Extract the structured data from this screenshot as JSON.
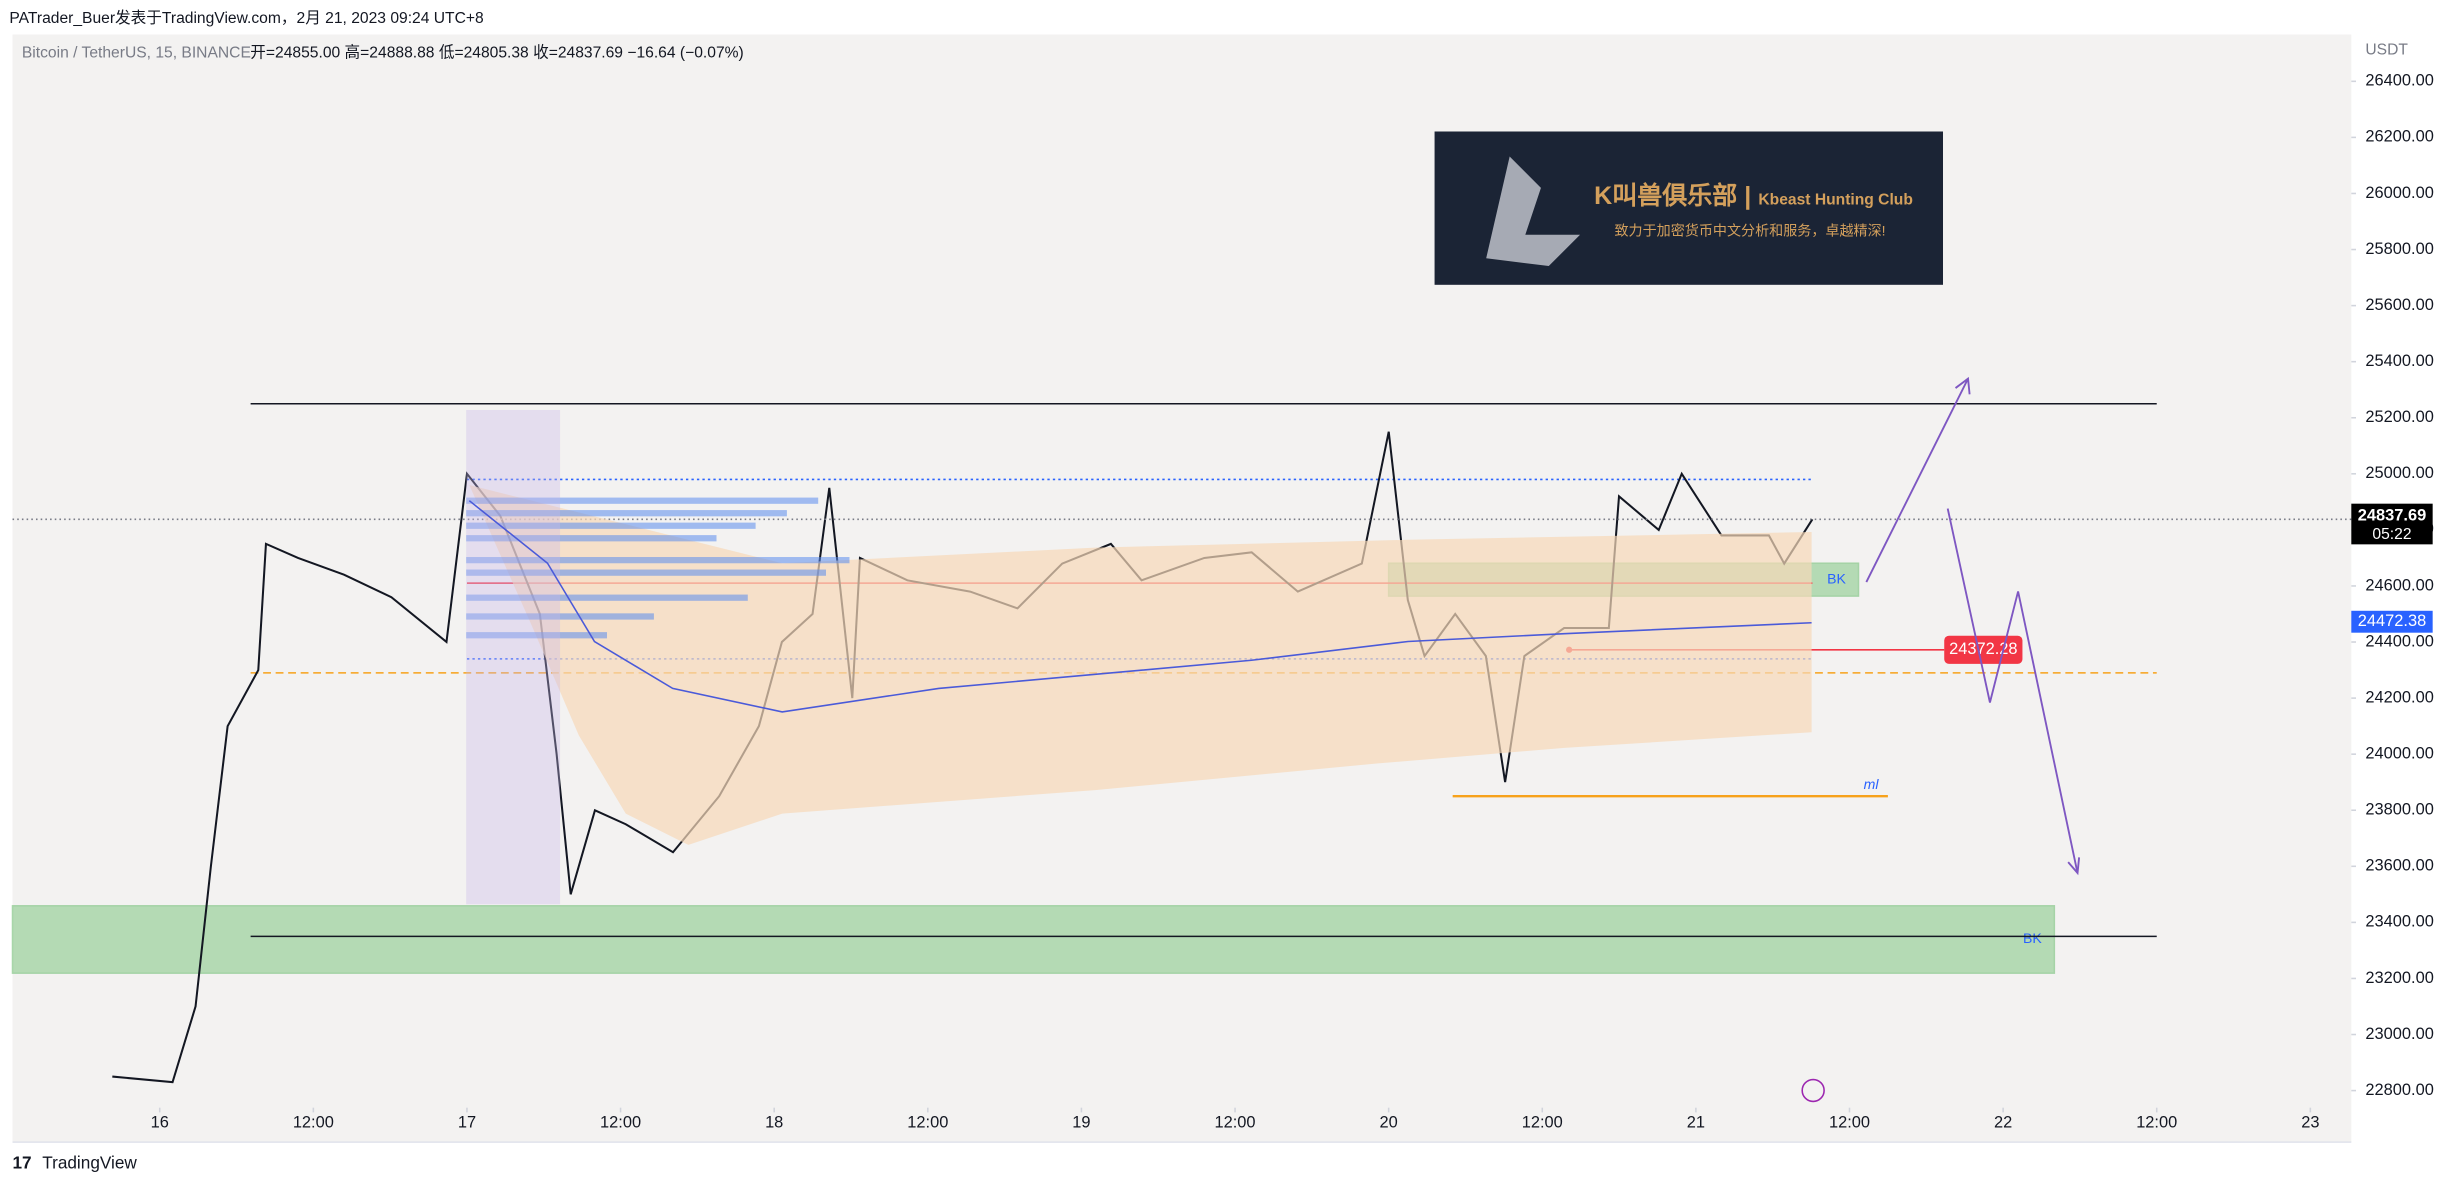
{
  "header": {
    "publisher": "PATrader_Buer发表于TradingView.com，2月 21, 2023 09:24 UTC+8"
  },
  "footer": {
    "brand": "TradingView"
  },
  "chart_data": {
    "type": "line",
    "title": "Bitcoin / TetherUS, 15, BINANCE",
    "legend_text": "开=24855.00  高=24888.88  低=24805.38  收=24837.69  −16.64 (−0.07%)",
    "y_unit": "USDT",
    "color": "#131722",
    "x": [
      -3.7,
      1,
      2.8,
      4,
      5.3,
      7.7,
      8.3,
      10.8,
      14.4,
      18.1,
      22.4,
      24,
      26.6,
      29.7,
      31,
      32.1,
      34,
      36.4,
      40.1,
      43.7,
      46.8,
      48.6,
      51,
      52.3,
      54.1,
      54.7,
      58.4,
      63.3,
      67,
      70.5,
      74.3,
      76.7,
      81.6,
      85.3,
      88.9,
      93.9,
      96,
      97.5,
      98.8,
      101.2,
      103.6,
      105.1,
      106.6,
      109.7,
      113.2,
      114,
      117.1,
      118.9,
      122,
      125.7,
      126.9,
      129.1
    ],
    "values": [
      22850,
      22830,
      23100,
      23600,
      24100,
      24300,
      24750,
      24700,
      24640,
      24560,
      24400,
      25000,
      24850,
      24500,
      24000,
      23500,
      23800,
      23750,
      23650,
      23850,
      24100,
      24400,
      24500,
      24950,
      24200,
      24700,
      24620,
      24580,
      24520,
      24680,
      24750,
      24620,
      24700,
      24720,
      24580,
      24680,
      25150,
      24550,
      24350,
      24500,
      24350,
      23900,
      24350,
      24450,
      24450,
      24920,
      24800,
      25000,
      24780,
      24780,
      24680,
      24837.69
    ],
    "xlim": [
      -11.5,
      171.2
    ],
    "ylim": [
      22739,
      26567
    ],
    "xticks": [
      {
        "value": 0,
        "label": "16"
      },
      {
        "value": 12,
        "label": "12:00"
      },
      {
        "value": 24,
        "label": "17"
      },
      {
        "value": 36,
        "label": "12:00"
      },
      {
        "value": 48,
        "label": "18"
      },
      {
        "value": 60,
        "label": "12:00"
      },
      {
        "value": 72,
        "label": "19"
      },
      {
        "value": 84,
        "label": "12:00"
      },
      {
        "value": 96,
        "label": "20"
      },
      {
        "value": 108,
        "label": "12:00"
      },
      {
        "value": 120,
        "label": "21"
      },
      {
        "value": 132,
        "label": "12:00"
      },
      {
        "value": 144,
        "label": "22"
      },
      {
        "value": 156,
        "label": "12:00"
      },
      {
        "value": 168,
        "label": "23"
      }
    ],
    "yticks": [
      {
        "value": 22800,
        "label": "22800.00"
      },
      {
        "value": 23000,
        "label": "23000.00"
      },
      {
        "value": 23200,
        "label": "23200.00"
      },
      {
        "value": 23400,
        "label": "23400.00"
      },
      {
        "value": 23600,
        "label": "23600.00"
      },
      {
        "value": 23800,
        "label": "23800.00"
      },
      {
        "value": 24000,
        "label": "24000.00"
      },
      {
        "value": 24200,
        "label": "24200.00"
      },
      {
        "value": 24400,
        "label": "24400.00"
      },
      {
        "value": 24600,
        "label": "24600.00"
      },
      {
        "value": 24800,
        "label": "24800.00"
      },
      {
        "value": 25000,
        "label": "25000.00"
      },
      {
        "value": 25200,
        "label": "25200.00"
      },
      {
        "value": 25400,
        "label": "25400.00"
      },
      {
        "value": 25600,
        "label": "25600.00"
      },
      {
        "value": 25800,
        "label": "25800.00"
      },
      {
        "value": 26000,
        "label": "26000.00"
      },
      {
        "value": 26200,
        "label": "26200.00"
      },
      {
        "value": 26400,
        "label": "26400.00"
      }
    ],
    "last_price": {
      "value": 24837.69,
      "label": "24837.69",
      "countdown": "05:22"
    },
    "price_markers": [
      {
        "value": 24472.38,
        "label": "24472.38",
        "color": "#2962ff"
      }
    ],
    "alert": {
      "value": 24372.28,
      "label": "24372.28",
      "color": "#f23645",
      "x": [
        110.1,
        139.4
      ]
    },
    "levels": [
      {
        "value": 25250,
        "x": [
          7.1,
          156
        ],
        "color": "#131722",
        "style": "solid"
      },
      {
        "value": 23350,
        "x": [
          7.1,
          156
        ],
        "color": "#131722",
        "style": "solid"
      },
      {
        "value": 24980,
        "x": [
          24,
          129.1
        ],
        "color": "#2962ff",
        "style": "dotted"
      },
      {
        "value": 24340,
        "x": [
          24,
          129.1
        ],
        "color": "#2962ff",
        "style": "dotted"
      },
      {
        "value": 24290,
        "x": [
          7.1,
          156
        ],
        "color": "#f7a21b",
        "style": "dashed"
      },
      {
        "value": 24610,
        "x": [
          24,
          129.1
        ],
        "color": "#f23645",
        "style": "solid"
      }
    ],
    "ml": {
      "label": "ml",
      "value": 23850,
      "x": [
        101,
        135
      ],
      "color": "#f7a21b"
    },
    "zones": [
      {
        "label": "BK",
        "x": [
          -11.5,
          148
        ],
        "ylim": [
          23219,
          23459
        ]
      },
      {
        "label": "BK",
        "x": [
          96,
          132.7
        ],
        "ylim": [
          24564,
          24681
        ]
      }
    ],
    "banner": {
      "title": "K叫兽俱乐部 | ",
      "subtitle": "Kbeast Hunting Club",
      "tagline": "致力于加密货币中文分析和服务，卓越精深!"
    }
  }
}
